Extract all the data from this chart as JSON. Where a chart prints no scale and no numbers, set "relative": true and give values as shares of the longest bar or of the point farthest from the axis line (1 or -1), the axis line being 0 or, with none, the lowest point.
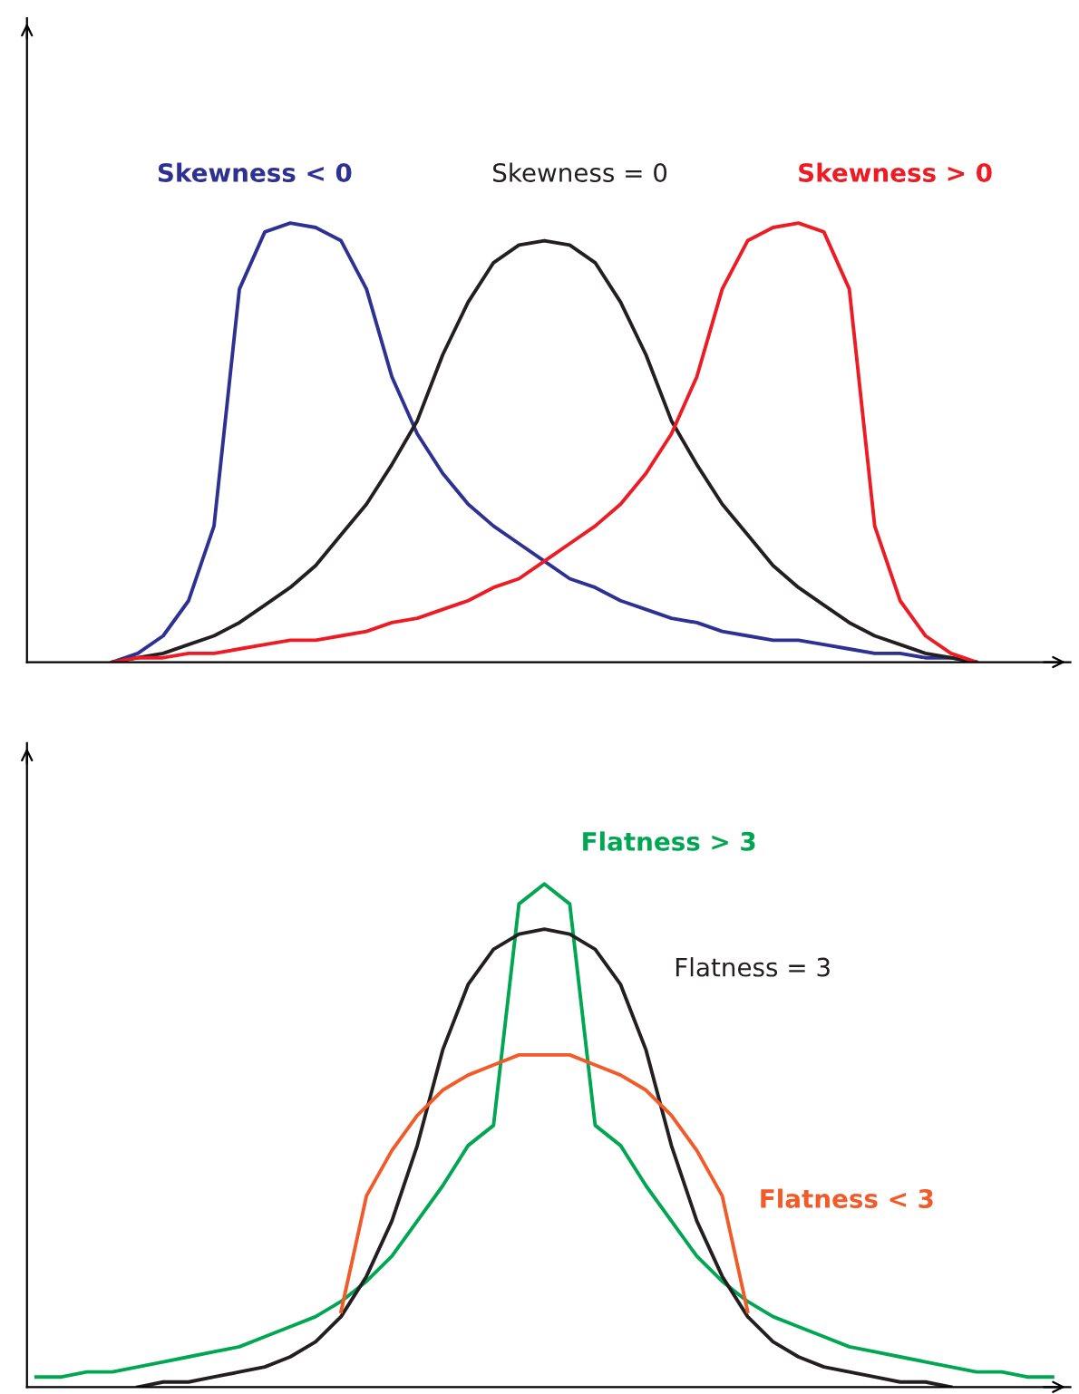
{
  "chart_data": [
    {
      "type": "line",
      "relative": true,
      "legend": false,
      "categories": [
        null,
        null,
        null,
        null,
        null,
        null,
        null,
        null,
        null,
        null,
        null,
        null,
        null,
        null,
        null,
        null,
        null,
        null,
        null,
        null,
        null,
        null,
        null,
        null,
        null,
        null,
        null,
        null,
        null,
        null,
        null,
        null,
        null,
        null,
        null,
        null,
        null,
        null,
        null,
        null,
        null
      ],
      "series": [
        {
          "name": "Skewness < 0",
          "color": "#2e3192",
          "values": [
            null,
            null,
            null,
            0,
            0.02,
            0.06,
            0.14,
            0.31,
            0.85,
            0.98,
            1.0,
            0.99,
            0.96,
            0.85,
            0.65,
            0.52,
            0.43,
            0.36,
            0.31,
            0.27,
            0.23,
            0.19,
            0.17,
            0.14,
            0.12,
            0.1,
            0.09,
            0.07,
            0.06,
            0.05,
            0.05,
            0.04,
            0.03,
            0.02,
            0.02,
            0.01,
            0.01,
            0,
            null,
            null,
            null
          ]
        },
        {
          "name": "Skewness = 0",
          "color": "#231f20",
          "values": [
            null,
            null,
            null,
            0,
            0.01,
            0.02,
            0.04,
            0.06,
            0.09,
            0.13,
            0.17,
            0.22,
            0.29,
            0.36,
            0.45,
            0.55,
            0.7,
            0.82,
            0.91,
            0.95,
            0.96,
            0.95,
            0.91,
            0.82,
            0.7,
            0.55,
            0.45,
            0.36,
            0.29,
            0.22,
            0.17,
            0.13,
            0.09,
            0.06,
            0.04,
            0.02,
            0.01,
            0,
            null,
            null,
            null
          ]
        },
        {
          "name": "Skewness > 0",
          "color": "#ed1c24",
          "values": [
            null,
            null,
            null,
            0,
            0.01,
            0.01,
            0.02,
            0.02,
            0.03,
            0.04,
            0.05,
            0.05,
            0.06,
            0.07,
            0.09,
            0.1,
            0.12,
            0.14,
            0.17,
            0.19,
            0.23,
            0.27,
            0.31,
            0.36,
            0.43,
            0.52,
            0.65,
            0.85,
            0.96,
            0.99,
            1.0,
            0.98,
            0.85,
            0.31,
            0.14,
            0.06,
            0.02,
            0,
            null,
            null,
            null
          ]
        }
      ]
    },
    {
      "type": "line",
      "relative": true,
      "legend": false,
      "categories": [
        null,
        null,
        null,
        null,
        null,
        null,
        null,
        null,
        null,
        null,
        null,
        null,
        null,
        null,
        null,
        null,
        null,
        null,
        null,
        null,
        null,
        null,
        null,
        null,
        null,
        null,
        null,
        null,
        null,
        null,
        null,
        null,
        null,
        null,
        null,
        null,
        null,
        null,
        null,
        null,
        null
      ],
      "series": [
        {
          "name": "Flatness > 3",
          "color": "#00a651",
          "values": [
            0.02,
            0.02,
            0.03,
            0.03,
            0.04,
            0.05,
            0.06,
            0.07,
            0.08,
            0.1,
            0.12,
            0.14,
            0.17,
            0.21,
            0.26,
            0.33,
            0.4,
            0.48,
            0.52,
            0.96,
            1.0,
            0.96,
            0.52,
            0.48,
            0.4,
            0.33,
            0.26,
            0.21,
            0.17,
            0.14,
            0.12,
            0.1,
            0.08,
            0.07,
            0.06,
            0.05,
            0.04,
            0.03,
            0.03,
            0.02,
            0.02
          ]
        },
        {
          "name": "Flatness = 3",
          "color": "#231f20",
          "values": [
            null,
            null,
            null,
            null,
            0,
            0.01,
            0.01,
            0.02,
            0.03,
            0.04,
            0.06,
            0.09,
            0.14,
            0.22,
            0.33,
            0.48,
            0.67,
            0.8,
            0.87,
            0.9,
            0.91,
            0.9,
            0.87,
            0.8,
            0.67,
            0.48,
            0.33,
            0.22,
            0.14,
            0.09,
            0.06,
            0.04,
            0.03,
            0.02,
            0.01,
            0.01,
            0,
            null,
            null,
            null,
            null
          ]
        },
        {
          "name": "Flatness < 3",
          "color": "#f15a29",
          "values": [
            null,
            null,
            null,
            null,
            null,
            null,
            null,
            null,
            null,
            null,
            null,
            null,
            0.15,
            0.38,
            0.47,
            0.54,
            0.59,
            0.62,
            0.64,
            0.66,
            0.66,
            0.66,
            0.64,
            0.62,
            0.59,
            0.54,
            0.47,
            0.38,
            0.15,
            null,
            null,
            null,
            null,
            null,
            null,
            null,
            null,
            null,
            null,
            null,
            null
          ]
        }
      ]
    }
  ]
}
